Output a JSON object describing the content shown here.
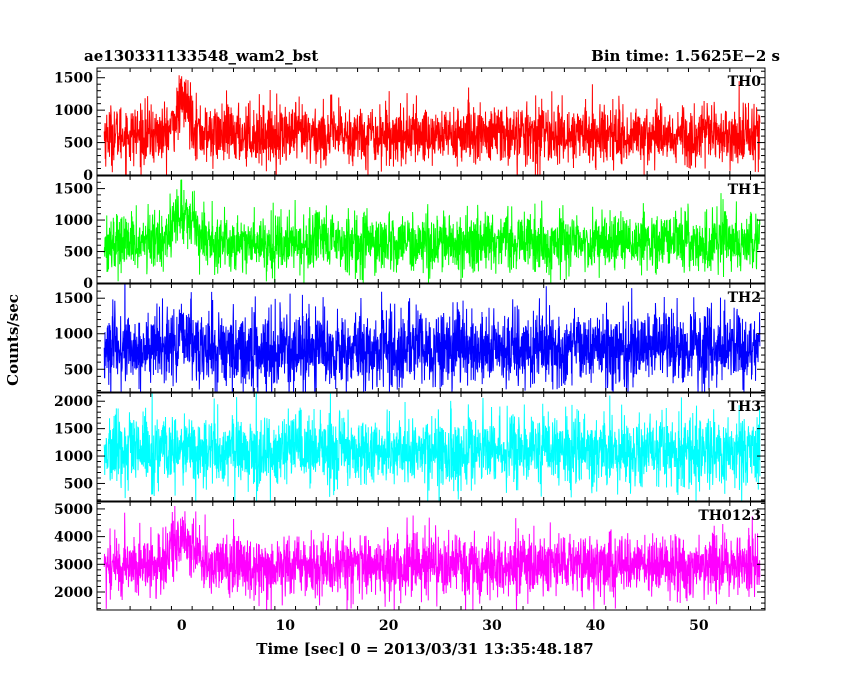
{
  "chart_data": {
    "type": "line",
    "title": "ae130331133548_wam2_bst",
    "bin_time_label": "Bin time: 1.5625E−2 s",
    "xlabel": "Time [sec] 0 = 2013/03/31 13:35:48.187",
    "ylabel": "Counts/sec",
    "xlim": [
      -8.2,
      56.4
    ],
    "x_ticks": [
      0,
      10,
      20,
      30,
      40,
      50
    ],
    "x_tick_labels": [
      "0",
      "10",
      "20",
      "30",
      "40",
      "50"
    ],
    "t_range": [
      -7.5,
      55.9
    ],
    "burst_time": 0.2,
    "grid": false,
    "legend": "none",
    "panels": [
      {
        "name": "TH0",
        "color": "#ff0000",
        "ylim": [
          0,
          1650
        ],
        "y_ticks": [
          0,
          500,
          1000,
          1500
        ],
        "y_tick_labels": [
          "0",
          "500",
          "1000",
          "1500"
        ],
        "baseline_mean": 620,
        "noise_sigma": 230,
        "burst_amp": 500,
        "burst_width": 0.7
      },
      {
        "name": "TH1",
        "color": "#00ff00",
        "ylim": [
          0,
          1700
        ],
        "y_ticks": [
          0,
          500,
          1000,
          1500
        ],
        "y_tick_labels": [
          "0",
          "500",
          "1000",
          "1500"
        ],
        "baseline_mean": 640,
        "noise_sigma": 230,
        "burst_amp": 450,
        "burst_width": 1.2
      },
      {
        "name": "TH2",
        "color": "#0000ff",
        "ylim": [
          180,
          1700
        ],
        "y_ticks": [
          500,
          1000,
          1500
        ],
        "y_tick_labels": [
          "500",
          "1000",
          "1500"
        ],
        "baseline_mean": 780,
        "noise_sigma": 270,
        "burst_amp": 150,
        "burst_width": 0.8
      },
      {
        "name": "TH3",
        "color": "#00ffff",
        "ylim": [
          180,
          2150
        ],
        "y_ticks": [
          500,
          1000,
          1500,
          2000
        ],
        "y_tick_labels": [
          "500",
          "1000",
          "1500",
          "2000"
        ],
        "baseline_mean": 1080,
        "noise_sigma": 330,
        "burst_amp": 0,
        "burst_width": 1.0
      },
      {
        "name": "TH0123",
        "color": "#ff00ff",
        "ylim": [
          1350,
          5250
        ],
        "y_ticks": [
          2000,
          3000,
          4000,
          5000
        ],
        "y_tick_labels": [
          "2000",
          "3000",
          "4000",
          "5000"
        ],
        "baseline_mean": 2950,
        "noise_sigma": 560,
        "burst_amp": 1000,
        "burst_width": 1.0
      }
    ]
  }
}
